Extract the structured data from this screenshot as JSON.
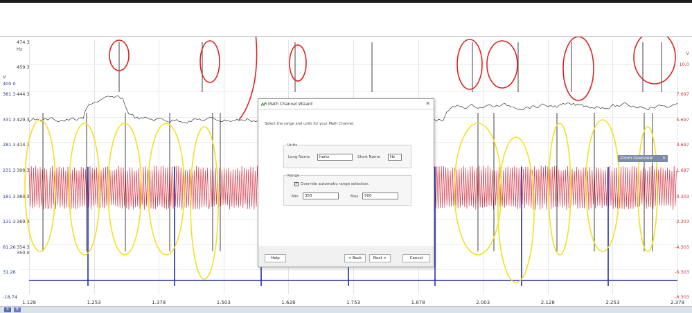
{
  "dialog": {
    "title": "Math Channel Wizard",
    "instruction": "Select the range and units for your Math Channel.",
    "units_group_title": "Units",
    "long_name_label": "Long Name",
    "long_name_value": "hertz",
    "short_name_label": "Short Name",
    "short_name_value": "Hz",
    "range_group_title": "Range",
    "override_label": "Override automatic range selection.",
    "override_checked": "✓",
    "min_label": "Min",
    "min_value": "350",
    "max_label": "Max",
    "max_value": "500",
    "help_button": "Help",
    "back_button": "< Back",
    "next_button": "Next >",
    "cancel_button": "Cancel"
  },
  "zoom_overview": {
    "label": "Zoom Overview"
  },
  "axes": {
    "left_outer": [
      {
        "text": "V"
      },
      {
        "text": "400.0"
      },
      {
        "text": "381.3"
      },
      {
        "text": "331.3"
      },
      {
        "text": "281.3"
      },
      {
        "text": "231.3"
      },
      {
        "text": "181.3"
      },
      {
        "text": "131.3"
      },
      {
        "text": "81.26"
      },
      {
        "text": "31.26"
      },
      {
        "text": "-18.74"
      }
    ],
    "left_inner": [
      {
        "text": "474.3"
      },
      {
        "text": "Hz"
      },
      {
        "text": "459.3"
      },
      {
        "text": "444.3"
      },
      {
        "text": "429.3"
      },
      {
        "text": "414.3"
      },
      {
        "text": "399.3"
      },
      {
        "text": "384.3"
      },
      {
        "text": "369.3"
      },
      {
        "text": "354.3"
      },
      {
        "text": "350.0"
      }
    ],
    "right": [
      {
        "text": "V"
      },
      {
        "text": "10.0"
      },
      {
        "text": "7.697"
      },
      {
        "text": "5.697"
      },
      {
        "text": "3.697"
      },
      {
        "text": "1.697"
      },
      {
        "text": "-0.303"
      },
      {
        "text": "-2.303"
      },
      {
        "text": "-4.303"
      },
      {
        "text": "-6.303"
      },
      {
        "text": "-8.303"
      }
    ],
    "x_ticks": [
      "1.128",
      "1.253",
      "1.378",
      "1.503",
      "1.628",
      "1.753",
      "1.878",
      "2.003",
      "2.128",
      "2.253",
      "2.378"
    ]
  },
  "status": {
    "badge_a": "A",
    "badge_b": "B"
  },
  "colors": {
    "red_trace": "#d43c4c",
    "blue_trace": "#1f2fa8",
    "black_trace": "#111111",
    "annotation_red": "#e02020",
    "annotation_yellow": "#f2e024"
  }
}
